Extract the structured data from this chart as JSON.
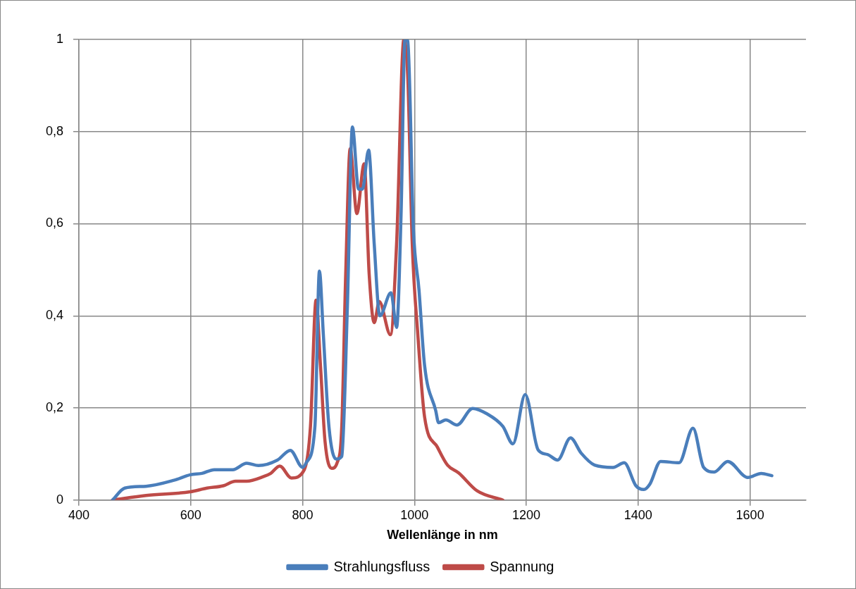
{
  "chart_data": {
    "type": "line",
    "xlabel": "Wellenlänge in nm",
    "xlim": [
      400,
      1700
    ],
    "xticks": [
      400,
      600,
      800,
      1000,
      1200,
      1400,
      1600
    ],
    "ylim": [
      0,
      1
    ],
    "yticks": [
      {
        "value": 0,
        "label": "0"
      },
      {
        "value": 0.2,
        "label": "0,2"
      },
      {
        "value": 0.4,
        "label": "0,4"
      },
      {
        "value": 0.6,
        "label": "0,6"
      },
      {
        "value": 0.8,
        "label": "0,8"
      },
      {
        "value": 1,
        "label": "1"
      }
    ],
    "grid": true,
    "legend": "bottom",
    "marker": "none",
    "line_style": "solid",
    "series": [
      {
        "name": "Strahlungsfluss",
        "color": "#4a7ebb",
        "x": [
          460,
          482,
          520,
          570,
          599,
          620,
          642,
          675,
          700,
          721,
          755,
          778,
          800,
          807,
          822,
          830,
          837,
          847,
          860,
          870,
          880,
          889,
          900,
          907,
          918,
          928,
          938,
          958,
          968,
          976,
          983,
          988,
          998,
          1008,
          1018,
          1038,
          1043,
          1056,
          1076,
          1104,
          1130,
          1158,
          1176,
          1198,
          1221,
          1238,
          1256,
          1279,
          1298,
          1322,
          1355,
          1375,
          1396,
          1410,
          1421,
          1440,
          1473,
          1498,
          1517,
          1536,
          1560,
          1596,
          1620,
          1639
        ],
        "values": [
          0,
          0.026,
          0.03,
          0.043,
          0.055,
          0.058,
          0.066,
          0.066,
          0.08,
          0.075,
          0.087,
          0.108,
          0.071,
          0.082,
          0.16,
          0.497,
          0.36,
          0.16,
          0.089,
          0.095,
          0.42,
          0.81,
          0.675,
          0.675,
          0.76,
          0.556,
          0.4,
          0.45,
          0.375,
          0.62,
          1,
          0.997,
          0.59,
          0.457,
          0.293,
          0.194,
          0.168,
          0.174,
          0.163,
          0.199,
          0.187,
          0.16,
          0.122,
          0.229,
          0.109,
          0.099,
          0.087,
          0.135,
          0.102,
          0.076,
          0.071,
          0.081,
          0.031,
          0.023,
          0.035,
          0.084,
          0.081,
          0.156,
          0.071,
          0.061,
          0.084,
          0.049,
          0.058,
          0.053
        ]
      },
      {
        "name": "Spannung",
        "color": "#be4b48",
        "x": [
          460,
          520,
          599,
          629,
          658,
          680,
          700,
          730,
          743,
          759,
          780,
          803,
          814,
          824,
          832,
          840,
          852,
          862,
          870,
          877,
          885,
          897,
          910,
          919,
          928,
          937,
          957,
          968,
          981,
          988,
          996,
          1006,
          1018,
          1041,
          1059,
          1079,
          1112,
          1158
        ],
        "values": [
          0,
          0.01,
          0.018,
          0.026,
          0.031,
          0.041,
          0.041,
          0.051,
          0.058,
          0.074,
          0.048,
          0.066,
          0.16,
          0.434,
          0.29,
          0.128,
          0.069,
          0.082,
          0.16,
          0.49,
          0.763,
          0.622,
          0.73,
          0.49,
          0.385,
          0.431,
          0.359,
          0.556,
          1,
          0.918,
          0.556,
          0.359,
          0.181,
          0.115,
          0.076,
          0.059,
          0.02,
          0
        ]
      }
    ]
  }
}
